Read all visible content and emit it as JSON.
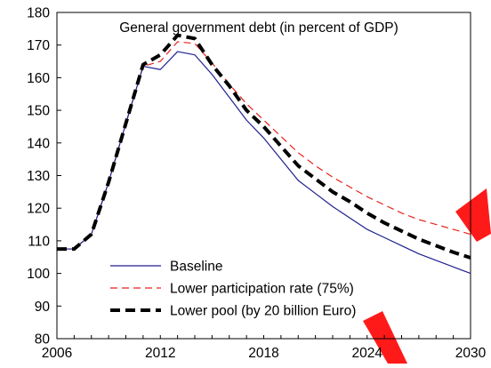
{
  "chart_data": {
    "type": "line",
    "title": "General government debt (in percent of GDP)",
    "xlabel": "",
    "ylabel": "",
    "xlim": [
      2006,
      2030
    ],
    "ylim": [
      80,
      180
    ],
    "x_ticks": [
      2006,
      2012,
      2018,
      2024,
      2030
    ],
    "y_ticks": [
      80,
      90,
      100,
      110,
      120,
      130,
      140,
      150,
      160,
      170,
      180
    ],
    "grid": false,
    "legend_position": "bottom-left",
    "x": [
      2006,
      2007,
      2008,
      2009,
      2010,
      2011,
      2012,
      2013,
      2014,
      2015,
      2016,
      2017,
      2018,
      2019,
      2020,
      2021,
      2022,
      2023,
      2024,
      2025,
      2026,
      2027,
      2028,
      2029,
      2030
    ],
    "series": [
      {
        "name": "Baseline",
        "color": "#1f1f8f",
        "line_style": "solid",
        "values": [
          107.5,
          107.5,
          112,
          128,
          146,
          163.5,
          162.5,
          168,
          167,
          161,
          154,
          147,
          141.5,
          135,
          128.5,
          124.5,
          120.5,
          117,
          113.5,
          111,
          108.5,
          106,
          104,
          102,
          100
        ]
      },
      {
        "name": "Lower participation rate (75%)",
        "color": "#e8221b",
        "line_style": "dashed",
        "values": [
          107.5,
          107.5,
          112,
          128,
          146,
          163.5,
          165,
          171,
          170.5,
          164.5,
          158,
          152,
          147,
          142,
          137,
          133,
          129.5,
          126.5,
          123.5,
          121,
          118.5,
          116.5,
          115,
          113.5,
          112
        ]
      },
      {
        "name": "Lower pool (by 20 billion Euro)",
        "color": "#000000",
        "line_style": "bold-dashed",
        "values": [
          107.5,
          107.5,
          112,
          128,
          146,
          164,
          167,
          173,
          172,
          164,
          157.5,
          150,
          145,
          139,
          133,
          129,
          125,
          122,
          118.5,
          115.5,
          113,
          110.5,
          108.5,
          106.5,
          104.8
        ]
      }
    ]
  },
  "decor": {
    "accent_stroke_color": "#ff1a1a"
  }
}
